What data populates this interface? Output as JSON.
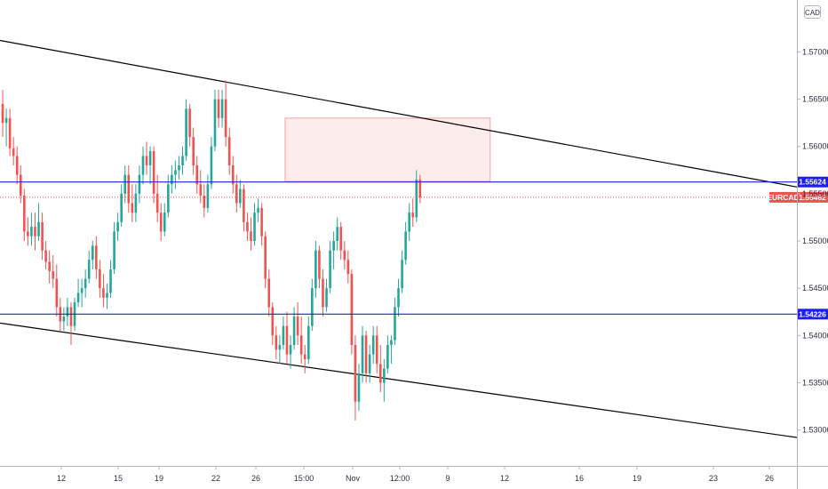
{
  "currency": "CAD",
  "colors": {
    "up": "#26a69a",
    "down": "#ef5350",
    "level": "#1e1ef0",
    "trend": "#000000",
    "zone_fill": "#fdecec",
    "zone_stroke": "#f3a3a3",
    "price_tag": "#ef5350"
  },
  "chart_data": {
    "type": "candlestick",
    "symbol": "EURCAD",
    "last_price": "1.55462",
    "ylim": [
      1.5262,
      1.5755
    ],
    "y_ticks": [
      "1.57000",
      "1.56500",
      "1.56000",
      "1.55500",
      "1.55000",
      "1.54500",
      "1.54000",
      "1.53500",
      "1.53000"
    ],
    "x_ticks": [
      "12",
      "15",
      "19",
      "22",
      "26",
      "15:00",
      "Nov",
      "12:00",
      "9",
      "12",
      "16",
      "19",
      "23",
      "26"
    ],
    "levels": [
      {
        "label": "1.55624",
        "value": 1.55624
      },
      {
        "label": "1.54226",
        "value": 1.54226
      }
    ],
    "current_price": 1.55462,
    "zone": {
      "bar_start": 79,
      "bar_end": 136,
      "price_low": 1.5563,
      "price_high": 1.563
    },
    "trendlines": [
      {
        "bar1": 0,
        "price1": 1.5712,
        "bar2": 150,
        "price2": 1.5607
      },
      {
        "bar1": 0,
        "price1": 1.5413,
        "bar2": 150,
        "price2": 1.5331
      }
    ],
    "ohlc": [
      [
        1.5645,
        1.566,
        1.561,
        1.5625
      ],
      [
        1.5625,
        1.564,
        1.56,
        1.563
      ],
      [
        1.563,
        1.564,
        1.559,
        1.5598
      ],
      [
        1.5598,
        1.561,
        1.558,
        1.559
      ],
      [
        1.559,
        1.56,
        1.556,
        1.557
      ],
      [
        1.557,
        1.558,
        1.554,
        1.5548
      ],
      [
        1.5548,
        1.5555,
        1.55,
        1.551
      ],
      [
        1.551,
        1.5525,
        1.5495,
        1.5505
      ],
      [
        1.5505,
        1.553,
        1.5495,
        1.5515
      ],
      [
        1.5515,
        1.553,
        1.549,
        1.5505
      ],
      [
        1.5505,
        1.554,
        1.55,
        1.552
      ],
      [
        1.552,
        1.553,
        1.548,
        1.549
      ],
      [
        1.549,
        1.55,
        1.547,
        1.5478
      ],
      [
        1.5478,
        1.549,
        1.5455,
        1.5468
      ],
      [
        1.5468,
        1.5485,
        1.545,
        1.546
      ],
      [
        1.546,
        1.5475,
        1.542,
        1.543
      ],
      [
        1.543,
        1.544,
        1.5405,
        1.5415
      ],
      [
        1.5415,
        1.543,
        1.5405,
        1.542
      ],
      [
        1.542,
        1.544,
        1.541,
        1.543
      ],
      [
        1.543,
        1.5435,
        1.539,
        1.541
      ],
      [
        1.541,
        1.544,
        1.5405,
        1.5435
      ],
      [
        1.5435,
        1.546,
        1.543,
        1.5445
      ],
      [
        1.5445,
        1.546,
        1.543,
        1.545
      ],
      [
        1.545,
        1.547,
        1.544,
        1.546
      ],
      [
        1.546,
        1.549,
        1.5455,
        1.548
      ],
      [
        1.548,
        1.55,
        1.547,
        1.5495
      ],
      [
        1.5495,
        1.5505,
        1.546,
        1.547
      ],
      [
        1.547,
        1.548,
        1.544,
        1.545
      ],
      [
        1.545,
        1.5465,
        1.543,
        1.544
      ],
      [
        1.544,
        1.5455,
        1.5428,
        1.5445
      ],
      [
        1.5445,
        1.548,
        1.544,
        1.547
      ],
      [
        1.547,
        1.552,
        1.5465,
        1.551
      ],
      [
        1.551,
        1.553,
        1.55,
        1.552
      ],
      [
        1.552,
        1.556,
        1.5515,
        1.555
      ],
      [
        1.555,
        1.558,
        1.554,
        1.557
      ],
      [
        1.557,
        1.558,
        1.553,
        1.554
      ],
      [
        1.554,
        1.556,
        1.552,
        1.553
      ],
      [
        1.553,
        1.556,
        1.552,
        1.555
      ],
      [
        1.555,
        1.558,
        1.554,
        1.557
      ],
      [
        1.557,
        1.56,
        1.556,
        1.559
      ],
      [
        1.559,
        1.5605,
        1.557,
        1.558
      ],
      [
        1.558,
        1.56,
        1.556,
        1.5595
      ],
      [
        1.5595,
        1.56,
        1.554,
        1.555
      ],
      [
        1.555,
        1.557,
        1.552,
        1.553
      ],
      [
        1.553,
        1.554,
        1.55,
        1.551
      ],
      [
        1.551,
        1.554,
        1.5505,
        1.553
      ],
      [
        1.553,
        1.557,
        1.5525,
        1.556
      ],
      [
        1.556,
        1.558,
        1.555,
        1.557
      ],
      [
        1.557,
        1.5585,
        1.5555,
        1.5575
      ],
      [
        1.5575,
        1.559,
        1.5565,
        1.558
      ],
      [
        1.558,
        1.56,
        1.557,
        1.559
      ],
      [
        1.559,
        1.565,
        1.5585,
        1.564
      ],
      [
        1.564,
        1.5645,
        1.56,
        1.561
      ],
      [
        1.561,
        1.562,
        1.557,
        1.558
      ],
      [
        1.558,
        1.559,
        1.555,
        1.556
      ],
      [
        1.556,
        1.5575,
        1.554,
        1.5548
      ],
      [
        1.5548,
        1.556,
        1.5525,
        1.5535
      ],
      [
        1.5535,
        1.557,
        1.553,
        1.556
      ],
      [
        1.556,
        1.561,
        1.5555,
        1.56
      ],
      [
        1.56,
        1.566,
        1.5595,
        1.565
      ],
      [
        1.565,
        1.566,
        1.562,
        1.563
      ],
      [
        1.563,
        1.566,
        1.562,
        1.565
      ],
      [
        1.565,
        1.567,
        1.56,
        1.561
      ],
      [
        1.561,
        1.562,
        1.557,
        1.558
      ],
      [
        1.558,
        1.559,
        1.555,
        1.556
      ],
      [
        1.556,
        1.557,
        1.553,
        1.554
      ],
      [
        1.554,
        1.5565,
        1.5535,
        1.5555
      ],
      [
        1.5555,
        1.556,
        1.551,
        1.552
      ],
      [
        1.552,
        1.553,
        1.55,
        1.551
      ],
      [
        1.551,
        1.5525,
        1.549,
        1.55
      ],
      [
        1.55,
        1.554,
        1.5495,
        1.553
      ],
      [
        1.553,
        1.5545,
        1.552,
        1.5535
      ],
      [
        1.5535,
        1.554,
        1.5495,
        1.5505
      ],
      [
        1.5505,
        1.551,
        1.545,
        1.546
      ],
      [
        1.546,
        1.547,
        1.542,
        1.543
      ],
      [
        1.543,
        1.5435,
        1.539,
        1.54
      ],
      [
        1.54,
        1.541,
        1.5375,
        1.5385
      ],
      [
        1.5385,
        1.54,
        1.537,
        1.539
      ],
      [
        1.539,
        1.542,
        1.5385,
        1.541
      ],
      [
        1.541,
        1.5425,
        1.537,
        1.538
      ],
      [
        1.538,
        1.54,
        1.5365,
        1.539
      ],
      [
        1.539,
        1.543,
        1.5385,
        1.542
      ],
      [
        1.542,
        1.5435,
        1.539,
        1.54
      ],
      [
        1.54,
        1.542,
        1.537,
        1.538
      ],
      [
        1.538,
        1.539,
        1.536,
        1.5375
      ],
      [
        1.5375,
        1.542,
        1.537,
        1.541
      ],
      [
        1.541,
        1.546,
        1.5405,
        1.545
      ],
      [
        1.545,
        1.55,
        1.544,
        1.549
      ],
      [
        1.549,
        1.5495,
        1.545,
        1.546
      ],
      [
        1.546,
        1.547,
        1.542,
        1.543
      ],
      [
        1.543,
        1.546,
        1.5425,
        1.545
      ],
      [
        1.545,
        1.55,
        1.5445,
        1.549
      ],
      [
        1.549,
        1.551,
        1.547,
        1.55
      ],
      [
        1.55,
        1.5525,
        1.549,
        1.5515
      ],
      [
        1.5515,
        1.552,
        1.548,
        1.549
      ],
      [
        1.549,
        1.55,
        1.547,
        1.548
      ],
      [
        1.548,
        1.549,
        1.5455,
        1.5465
      ],
      [
        1.5465,
        1.547,
        1.538,
        1.539
      ],
      [
        1.539,
        1.54,
        1.531,
        1.533
      ],
      [
        1.533,
        1.537,
        1.532,
        1.536
      ],
      [
        1.536,
        1.541,
        1.535,
        1.54
      ],
      [
        1.54,
        1.5405,
        1.535,
        1.536
      ],
      [
        1.536,
        1.539,
        1.535,
        1.538
      ],
      [
        1.538,
        1.541,
        1.537,
        1.54
      ],
      [
        1.54,
        1.541,
        1.536,
        1.537
      ],
      [
        1.537,
        1.539,
        1.534,
        1.535
      ],
      [
        1.535,
        1.5375,
        1.533,
        1.5365
      ],
      [
        1.5365,
        1.54,
        1.536,
        1.539
      ],
      [
        1.539,
        1.54,
        1.537,
        1.5395
      ],
      [
        1.5395,
        1.544,
        1.539,
        1.543
      ],
      [
        1.543,
        1.546,
        1.542,
        1.545
      ],
      [
        1.545,
        1.549,
        1.5445,
        1.548
      ],
      [
        1.548,
        1.552,
        1.5475,
        1.551
      ],
      [
        1.551,
        1.554,
        1.55,
        1.553
      ],
      [
        1.553,
        1.5545,
        1.5515,
        1.5525
      ],
      [
        1.5525,
        1.5575,
        1.552,
        1.5565
      ],
      [
        1.5565,
        1.557,
        1.554,
        1.5546
      ]
    ]
  }
}
